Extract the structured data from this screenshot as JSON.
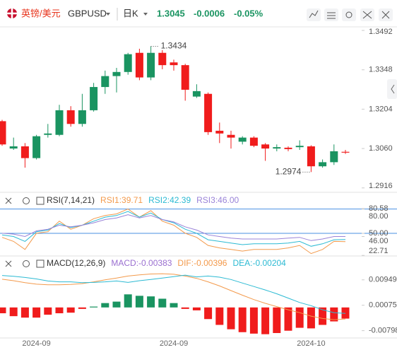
{
  "header": {
    "pair_name": "英镑/美元",
    "symbol": "GBPUSD",
    "period": "日K",
    "price": "1.3045",
    "change": "-0.0006",
    "change_percent": "-0.05%"
  },
  "chart_data": [
    {
      "type": "candlestick",
      "up_color": "#1a9461",
      "down_color": "#f01c1c",
      "open": [
        1.316,
        1.306,
        1.3068,
        1.3025,
        1.311,
        1.311,
        1.32,
        1.315,
        1.32,
        1.3285,
        1.3325,
        1.334,
        1.341,
        1.332,
        1.341,
        1.3375,
        1.3365,
        1.325,
        1.326,
        1.3125,
        1.311,
        1.3085,
        1.31,
        1.3075,
        1.306,
        1.3063,
        1.3065,
        1.3068,
        1.2995,
        1.301,
        1.3048
      ],
      "high": [
        1.3165,
        1.31,
        1.308,
        1.311,
        1.315,
        1.322,
        1.3215,
        1.326,
        1.33,
        1.3345,
        1.3355,
        1.341,
        1.3425,
        1.3434,
        1.342,
        1.3385,
        1.337,
        1.3295,
        1.3265,
        1.3155,
        1.3125,
        1.3105,
        1.3105,
        1.308,
        1.3075,
        1.3068,
        1.309,
        1.3072,
        1.302,
        1.3075,
        1.3055
      ],
      "low": [
        1.307,
        1.3055,
        1.299,
        1.302,
        1.31,
        1.3105,
        1.314,
        1.314,
        1.3195,
        1.326,
        1.3265,
        1.333,
        1.331,
        1.331,
        1.335,
        1.3345,
        1.3235,
        1.3245,
        1.311,
        1.308,
        1.306,
        1.3075,
        1.3065,
        1.3015,
        1.305,
        1.305,
        1.3055,
        1.2974,
        1.299,
        1.3,
        1.304
      ],
      "close": [
        1.3075,
        1.3068,
        1.3025,
        1.3105,
        1.3115,
        1.32,
        1.315,
        1.32,
        1.3285,
        1.3325,
        1.334,
        1.3405,
        1.332,
        1.341,
        1.3365,
        1.3365,
        1.3275,
        1.327,
        1.312,
        1.3115,
        1.31,
        1.31,
        1.307,
        1.306,
        1.3065,
        1.3058,
        1.307,
        1.2995,
        1.301,
        1.305,
        1.3045
      ],
      "ylim": [
        1.2905,
        1.3505
      ],
      "yticks": [
        1.3492,
        1.3348,
        1.3204,
        {
          "value": 1.306,
          "label": "1.3060"
        },
        1.2916
      ]
    },
    {
      "type": "line",
      "title": "RSI(7,14,21)",
      "series": [
        {
          "name": "RSI1:39.71",
          "color": "#f39a4c",
          "values": [
            45,
            40,
            30,
            50,
            52,
            65,
            55,
            60,
            68,
            72,
            74,
            80,
            70,
            78,
            65,
            60,
            50,
            45,
            35,
            32,
            30,
            28,
            30,
            30,
            30,
            32,
            35,
            25,
            30,
            40,
            39.71
          ]
        },
        {
          "name": "RSI2:42.39",
          "color": "#2cbad3",
          "values": [
            48,
            46,
            40,
            52,
            54,
            62,
            57,
            60,
            65,
            70,
            72,
            77,
            70,
            75,
            67,
            63,
            55,
            50,
            42,
            40,
            38,
            36,
            37,
            37,
            37,
            38,
            40,
            34,
            37,
            42,
            42.39
          ]
        },
        {
          "name": "RSI3:46.00",
          "color": "#9a83d8",
          "values": [
            50,
            49,
            46,
            53,
            55,
            60,
            58,
            60,
            63,
            67,
            69,
            73,
            69,
            72,
            67,
            64,
            58,
            54,
            48,
            46,
            44,
            43,
            43,
            43,
            43,
            44,
            45,
            41,
            43,
            46,
            46.0
          ]
        }
      ],
      "hlines": [
        80,
        50
      ],
      "hline_color": "#4a90e2",
      "ylim": [
        22,
        98
      ],
      "yticks": [
        {
          "value": 80,
          "label": "80.00"
        },
        80.58,
        {
          "value": 50,
          "label": "50.00"
        },
        {
          "value": 46,
          "label": "46.00"
        },
        22.71
      ]
    },
    {
      "type": "macd",
      "title": "MACD(12,26,9)",
      "categories": [
        null,
        null,
        null,
        "2024-09",
        null,
        null,
        null,
        null,
        null,
        null,
        null,
        null,
        null,
        null,
        null,
        "2024-09",
        null,
        null,
        null,
        null,
        null,
        null,
        null,
        null,
        null,
        null,
        null,
        "2024-10",
        null,
        null,
        null
      ],
      "series": [
        {
          "name": "MACD:-0.00383",
          "type": "bar",
          "color": "#9a6fd0",
          "up_color": "#1a9461",
          "down_color": "#f01c1c",
          "values": [
            -0.002,
            -0.003,
            -0.0035,
            -0.0035,
            -0.0025,
            -0.002,
            -0.0018,
            -0.0005,
            0.0003,
            0.0015,
            0.002,
            0.0045,
            0.004,
            0.0038,
            0.003,
            0.0015,
            -0.0005,
            -0.001,
            -0.004,
            -0.006,
            -0.0075,
            -0.0085,
            -0.009,
            -0.0092,
            -0.0088,
            -0.008,
            -0.007,
            -0.0072,
            -0.006,
            -0.0048,
            -0.00383
          ]
        },
        {
          "name": "DIF:-0.00396",
          "type": "line",
          "color": "#f39a4c",
          "values": [
            0.0097,
            0.0092,
            0.0085,
            0.008,
            0.0078,
            0.0078,
            0.0079,
            0.0082,
            0.0088,
            0.0095,
            0.0101,
            0.0108,
            0.0112,
            0.0115,
            0.0116,
            0.0114,
            0.0108,
            0.01,
            0.0088,
            0.0074,
            0.0058,
            0.0042,
            0.0027,
            0.0014,
            0.0003,
            -0.0008,
            -0.0018,
            -0.003,
            -0.0038,
            -0.0042,
            -0.00396
          ]
        },
        {
          "name": "DEA:-0.00204",
          "type": "line",
          "color": "#2cbad3",
          "values": [
            0.011,
            0.0107,
            0.0103,
            0.0098,
            0.0091,
            0.0088,
            0.0088,
            0.0085,
            0.0086,
            0.0088,
            0.0091,
            0.0086,
            0.0092,
            0.0096,
            0.0101,
            0.0106,
            0.0111,
            0.0105,
            0.0108,
            0.0104,
            0.0096,
            0.0084,
            0.0072,
            0.006,
            0.0047,
            0.0032,
            0.0017,
            0.0006,
            -0.0008,
            -0.0018,
            -0.00204
          ]
        }
      ],
      "ylim": [
        -0.0105,
        0.0177
      ],
      "yticks": [
        0.00949,
        0.00075,
        -0.00798
      ]
    }
  ]
}
